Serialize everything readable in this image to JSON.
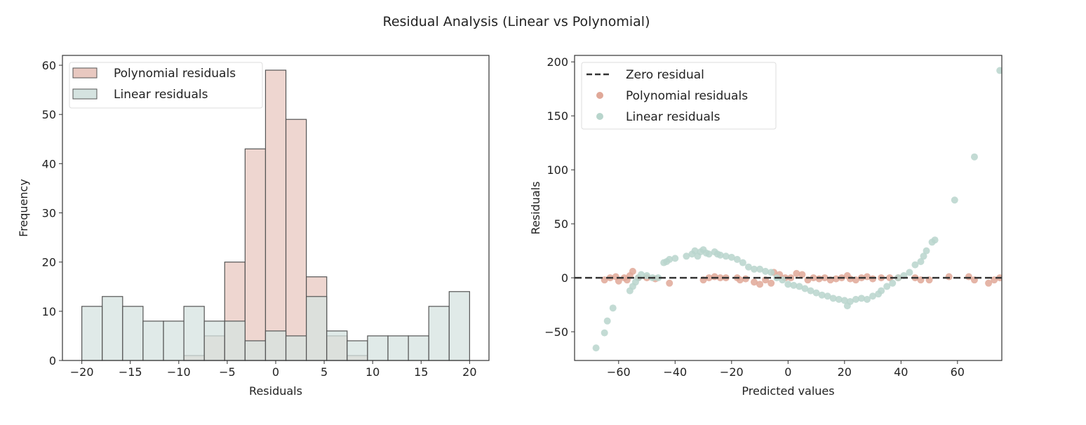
{
  "title": "Residual Analysis (Linear vs Polynomial)",
  "chart_data": [
    {
      "type": "bar",
      "subtype": "histogram",
      "xlabel": "Residuals",
      "ylabel": "Frequency",
      "xlim": [
        -22,
        22
      ],
      "ylim": [
        0,
        62
      ],
      "xticks": [
        -20,
        -15,
        -10,
        -5,
        0,
        5,
        10,
        15,
        20
      ],
      "yticks": [
        0,
        10,
        20,
        30,
        40,
        50,
        60
      ],
      "bin_range": [
        -20,
        20
      ],
      "bins": 19,
      "legend": "top-left",
      "series": [
        {
          "name": "Polynomial residuals",
          "color": "#e8c8c0",
          "counts": [
            0,
            0,
            0,
            0,
            0,
            1,
            5,
            20,
            43,
            59,
            49,
            17,
            5,
            1,
            0,
            0,
            0,
            0,
            0
          ]
        },
        {
          "name": "Linear residuals",
          "color": "#d5e3e0",
          "counts": [
            11,
            13,
            11,
            8,
            8,
            11,
            8,
            8,
            4,
            6,
            5,
            13,
            6,
            4,
            5,
            5,
            5,
            11,
            14
          ]
        }
      ]
    },
    {
      "type": "scatter",
      "xlabel": "Predicted values",
      "ylabel": "Residuals",
      "xlim": [
        -75.6,
        75.7
      ],
      "ylim": [
        -76.6,
        206
      ],
      "xticks": [
        -60,
        -40,
        -20,
        0,
        20,
        40,
        60
      ],
      "yticks": [
        -50,
        0,
        50,
        100,
        150,
        200
      ],
      "legend": "top-left",
      "reference_line": {
        "name": "Zero residual",
        "y": 0,
        "style": "dashed",
        "color": "#333333"
      },
      "series": [
        {
          "name": "Polynomial residuals",
          "color": "#e0a898",
          "points": [
            [
              -65,
              -2
            ],
            [
              -63,
              0
            ],
            [
              -61,
              1
            ],
            [
              -60,
              -3
            ],
            [
              -58,
              0
            ],
            [
              -57,
              -2
            ],
            [
              -56,
              2
            ],
            [
              -55,
              6
            ],
            [
              -53,
              0
            ],
            [
              -50,
              0
            ],
            [
              -47,
              -1
            ],
            [
              -42,
              -5
            ],
            [
              -30,
              -2
            ],
            [
              -28,
              0
            ],
            [
              -26,
              1
            ],
            [
              -24,
              0
            ],
            [
              -22,
              0
            ],
            [
              -18,
              0
            ],
            [
              -17,
              -2
            ],
            [
              -15,
              -1
            ],
            [
              -12,
              -4
            ],
            [
              -10,
              -6
            ],
            [
              -8,
              -2
            ],
            [
              -6,
              -5
            ],
            [
              -5,
              5
            ],
            [
              -3,
              3
            ],
            [
              -1,
              0
            ],
            [
              1,
              0
            ],
            [
              3,
              4
            ],
            [
              5,
              3
            ],
            [
              7,
              -2
            ],
            [
              9,
              0
            ],
            [
              11,
              -1
            ],
            [
              13,
              0
            ],
            [
              15,
              -2
            ],
            [
              17,
              -1
            ],
            [
              19,
              0
            ],
            [
              21,
              2
            ],
            [
              22,
              -1
            ],
            [
              24,
              -2
            ],
            [
              26,
              0
            ],
            [
              28,
              1
            ],
            [
              30,
              -1
            ],
            [
              33,
              0
            ],
            [
              36,
              0
            ],
            [
              39,
              0
            ],
            [
              45,
              0
            ],
            [
              47,
              -2
            ],
            [
              50,
              -2
            ],
            [
              57,
              1
            ],
            [
              64,
              1
            ],
            [
              66,
              -2
            ],
            [
              71,
              -5
            ],
            [
              73,
              -2
            ],
            [
              75,
              0
            ]
          ]
        },
        {
          "name": "Linear residuals",
          "color": "#b8d5cc",
          "points": [
            [
              -68,
              -65
            ],
            [
              -65,
              -51
            ],
            [
              -64,
              -40
            ],
            [
              -62,
              -28
            ],
            [
              -56,
              -12
            ],
            [
              -55,
              -8
            ],
            [
              -54,
              -4
            ],
            [
              -53,
              0
            ],
            [
              -52,
              3
            ],
            [
              -50,
              2
            ],
            [
              -48,
              0
            ],
            [
              -46,
              0
            ],
            [
              -44,
              14
            ],
            [
              -43,
              15
            ],
            [
              -42,
              17
            ],
            [
              -40,
              18
            ],
            [
              -36,
              20
            ],
            [
              -34,
              22
            ],
            [
              -33,
              25
            ],
            [
              -32,
              20
            ],
            [
              -31,
              24
            ],
            [
              -30,
              26
            ],
            [
              -29,
              23
            ],
            [
              -28,
              22
            ],
            [
              -26,
              24
            ],
            [
              -25,
              22
            ],
            [
              -24,
              21
            ],
            [
              -22,
              20
            ],
            [
              -20,
              19
            ],
            [
              -18,
              17
            ],
            [
              -16,
              14
            ],
            [
              -14,
              10
            ],
            [
              -12,
              8
            ],
            [
              -10,
              8
            ],
            [
              -8,
              6
            ],
            [
              -6,
              5
            ],
            [
              -4,
              0
            ],
            [
              -2,
              -2
            ],
            [
              0,
              -6
            ],
            [
              2,
              -7
            ],
            [
              4,
              -8
            ],
            [
              6,
              -10
            ],
            [
              8,
              -12
            ],
            [
              10,
              -14
            ],
            [
              12,
              -16
            ],
            [
              14,
              -17
            ],
            [
              16,
              -19
            ],
            [
              18,
              -20
            ],
            [
              20,
              -21
            ],
            [
              21,
              -26
            ],
            [
              22,
              -22
            ],
            [
              24,
              -20
            ],
            [
              26,
              -19
            ],
            [
              28,
              -20
            ],
            [
              30,
              -17
            ],
            [
              32,
              -15
            ],
            [
              33,
              -12
            ],
            [
              35,
              -8
            ],
            [
              37,
              -5
            ],
            [
              39,
              0
            ],
            [
              41,
              2
            ],
            [
              43,
              5
            ],
            [
              45,
              12
            ],
            [
              47,
              15
            ],
            [
              48,
              20
            ],
            [
              49,
              25
            ],
            [
              51,
              33
            ],
            [
              52,
              35
            ],
            [
              59,
              72
            ],
            [
              66,
              112
            ],
            [
              75,
              192
            ]
          ]
        }
      ]
    }
  ]
}
